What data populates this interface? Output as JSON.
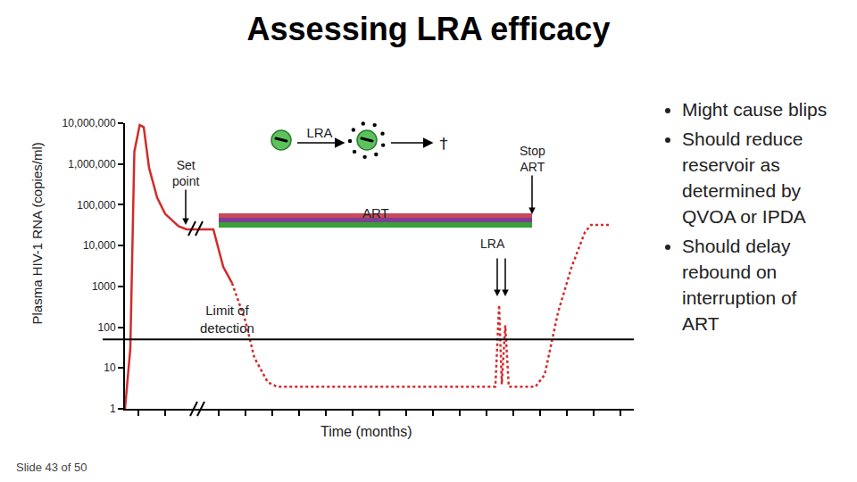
{
  "chart_data": {
    "type": "line",
    "title": "Assessing LRA efficacy",
    "x_label": "Time (months)",
    "y_label": "Plasma HIV-1 RNA (copies/ml)",
    "log": "y",
    "grid": false,
    "tick_labels": "y",
    "xlim": [
      0,
      19
    ],
    "xticks": [
      0.5,
      1.5,
      3.5,
      4.5,
      5.5,
      6.5,
      7.5,
      8.5,
      9.5,
      10.5,
      11.5,
      12.5,
      13.5,
      14.5,
      15.5,
      16.5,
      17.5,
      18.5
    ],
    "ylim": [
      1,
      10000000
    ],
    "yticks": [
      1,
      10,
      100,
      1000,
      {
        "value": 10000,
        "label": "10,000"
      },
      {
        "value": 100000,
        "label": "100,000"
      },
      {
        "value": 1000000,
        "label": "1,000,000"
      },
      {
        "value": 10000000,
        "label": "10,000,000"
      }
    ],
    "series": [
      {
        "color": "#d42a2a",
        "line_style": "solid",
        "x": [
          0,
          0.2,
          0.35,
          0.55,
          0.7,
          0.9,
          1.2,
          1.5,
          2.0,
          2.3,
          3.3,
          3.67,
          4.0
        ],
        "values": [
          1,
          30,
          2000000,
          9000000,
          8000000,
          800000,
          150000,
          60000,
          30000,
          25000,
          25000,
          3000,
          1200
        ]
      },
      {
        "color": "#d42a2a",
        "line_style": "dotted",
        "x": [
          4.0,
          4.5,
          4.83,
          5.33,
          5.67,
          13.83,
          13.97,
          14.07,
          14.2,
          14.33,
          15.33,
          15.67,
          16.17,
          16.67,
          17.17,
          17.4,
          18.17
        ],
        "values": [
          1200,
          140,
          18,
          4.5,
          3.5,
          3.5,
          350,
          4,
          110,
          3.5,
          3.5,
          6.8,
          230,
          2900,
          21000,
          32000,
          32000
        ]
      }
    ],
    "reference_line": {
      "value": 50,
      "label": [
        "Limit of",
        "detection"
      ]
    },
    "art_period": {
      "label": "ART",
      "x": [
        3.5,
        15.2
      ],
      "colors": [
        "#c9485b",
        "#7e3f8f",
        "#3a9e3a"
      ]
    },
    "annotations": {
      "set_point": [
        "Set",
        "point"
      ],
      "stop_art": [
        "Stop",
        "ART"
      ],
      "lra_dosing": "LRA",
      "lra_mechanism": "LRA",
      "cell_death": "†"
    }
  },
  "bullets": [
    [
      "Might cause blips"
    ],
    [
      "Should reduce",
      "reservoir as",
      "determined by",
      "QVOA or IPDA"
    ],
    [
      "Should delay",
      "rebound on",
      "interruption of",
      "ART"
    ]
  ],
  "footer": "Slide 43 of 50"
}
